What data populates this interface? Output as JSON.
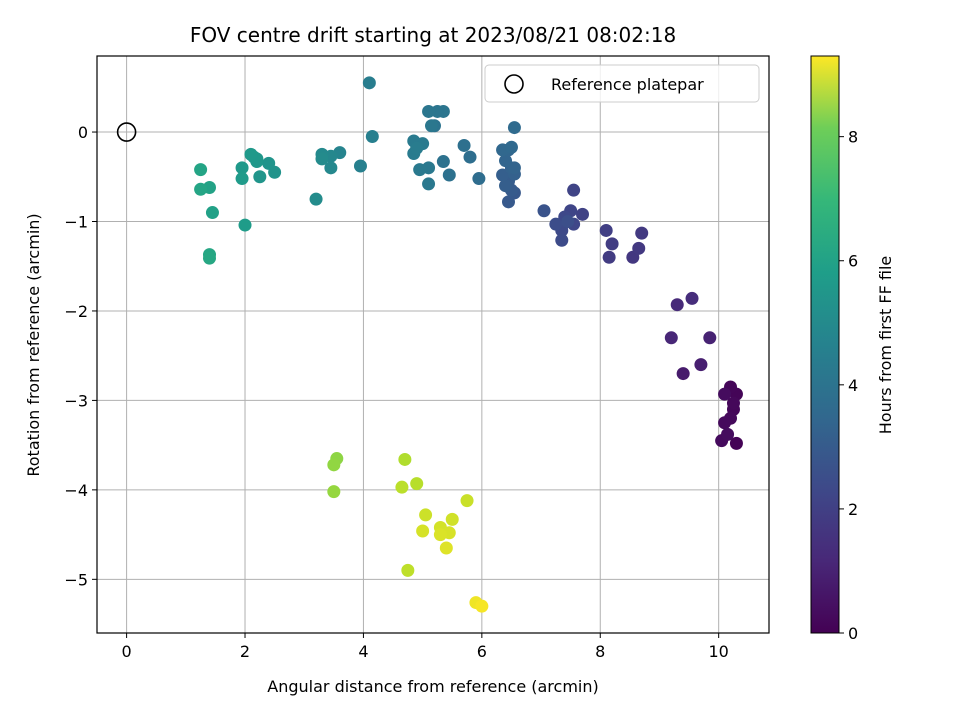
{
  "chart_data": {
    "type": "scatter",
    "title": "FOV centre drift starting at 2023/08/21 08:02:18",
    "xlabel": "Angular distance from reference (arcmin)",
    "ylabel": "Rotation from reference (arcmin)",
    "xlim": [
      -0.5,
      10.85
    ],
    "ylim": [
      -5.6,
      0.85
    ],
    "xticks": [
      0,
      2,
      4,
      6,
      8,
      10
    ],
    "yticks": [
      0,
      -1,
      -2,
      -3,
      -4,
      -5
    ],
    "grid": true,
    "legend": {
      "placement": "upper right",
      "entries": [
        "Reference platepar"
      ]
    },
    "reference_point": {
      "x": 0,
      "y": 0,
      "label": "Reference platepar"
    },
    "colorbar": {
      "label": "Hours from first FF file",
      "range": [
        0,
        9.3
      ],
      "ticks": [
        0,
        2,
        4,
        6,
        8
      ],
      "colormap": "viridis"
    },
    "points": [
      {
        "x": 10.3,
        "y": -3.48,
        "h": 0.05
      },
      {
        "x": 10.3,
        "y": -2.93,
        "h": 0.1
      },
      {
        "x": 10.2,
        "y": -2.85,
        "h": 0.12
      },
      {
        "x": 10.25,
        "y": -3.1,
        "h": 0.15
      },
      {
        "x": 10.25,
        "y": -3.03,
        "h": 0.18
      },
      {
        "x": 10.2,
        "y": -3.2,
        "h": 0.2
      },
      {
        "x": 10.1,
        "y": -3.25,
        "h": 0.22
      },
      {
        "x": 10.05,
        "y": -3.45,
        "h": 0.25
      },
      {
        "x": 10.15,
        "y": -3.38,
        "h": 0.28
      },
      {
        "x": 10.1,
        "y": -2.93,
        "h": 0.3
      },
      {
        "x": 9.4,
        "y": -2.7,
        "h": 0.7
      },
      {
        "x": 9.7,
        "y": -2.6,
        "h": 0.8
      },
      {
        "x": 9.85,
        "y": -2.3,
        "h": 0.9
      },
      {
        "x": 9.2,
        "y": -2.3,
        "h": 1.0
      },
      {
        "x": 9.3,
        "y": -1.93,
        "h": 1.1
      },
      {
        "x": 9.55,
        "y": -1.86,
        "h": 1.2
      },
      {
        "x": 8.55,
        "y": -1.4,
        "h": 1.5
      },
      {
        "x": 8.65,
        "y": -1.3,
        "h": 1.55
      },
      {
        "x": 8.7,
        "y": -1.13,
        "h": 1.6
      },
      {
        "x": 8.15,
        "y": -1.4,
        "h": 1.65
      },
      {
        "x": 8.2,
        "y": -1.25,
        "h": 1.7
      },
      {
        "x": 8.1,
        "y": -1.1,
        "h": 1.75
      },
      {
        "x": 7.7,
        "y": -0.92,
        "h": 1.85
      },
      {
        "x": 7.55,
        "y": -0.65,
        "h": 1.9
      },
      {
        "x": 7.5,
        "y": -0.88,
        "h": 1.95
      },
      {
        "x": 7.55,
        "y": -1.03,
        "h": 2.0
      },
      {
        "x": 7.4,
        "y": -0.95,
        "h": 2.05
      },
      {
        "x": 7.35,
        "y": -1.1,
        "h": 2.1
      },
      {
        "x": 7.35,
        "y": -1.21,
        "h": 2.15
      },
      {
        "x": 7.25,
        "y": -1.03,
        "h": 2.2
      },
      {
        "x": 7.45,
        "y": -1.0,
        "h": 2.25
      },
      {
        "x": 7.05,
        "y": -0.88,
        "h": 2.4
      },
      {
        "x": 6.55,
        "y": -0.68,
        "h": 2.55
      },
      {
        "x": 6.45,
        "y": -0.78,
        "h": 2.6
      },
      {
        "x": 6.5,
        "y": -0.65,
        "h": 2.65
      },
      {
        "x": 6.45,
        "y": -0.55,
        "h": 2.7
      },
      {
        "x": 6.4,
        "y": -0.6,
        "h": 2.75
      },
      {
        "x": 6.35,
        "y": -0.48,
        "h": 2.8
      },
      {
        "x": 6.55,
        "y": -0.47,
        "h": 2.85
      },
      {
        "x": 6.5,
        "y": -0.4,
        "h": 2.9
      },
      {
        "x": 6.55,
        "y": -0.4,
        "h": 2.95
      },
      {
        "x": 6.4,
        "y": -0.32,
        "h": 3.0
      },
      {
        "x": 6.45,
        "y": -0.2,
        "h": 3.05
      },
      {
        "x": 6.35,
        "y": -0.2,
        "h": 3.1
      },
      {
        "x": 6.5,
        "y": -0.17,
        "h": 3.15
      },
      {
        "x": 6.55,
        "y": 0.05,
        "h": 3.2
      },
      {
        "x": 5.95,
        "y": -0.52,
        "h": 3.3
      },
      {
        "x": 5.8,
        "y": -0.28,
        "h": 3.35
      },
      {
        "x": 5.7,
        "y": -0.15,
        "h": 3.4
      },
      {
        "x": 5.45,
        "y": -0.48,
        "h": 3.45
      },
      {
        "x": 5.35,
        "y": -0.33,
        "h": 3.5
      },
      {
        "x": 5.2,
        "y": 0.07,
        "h": 3.55
      },
      {
        "x": 5.35,
        "y": 0.23,
        "h": 3.6
      },
      {
        "x": 5.25,
        "y": 0.23,
        "h": 3.62
      },
      {
        "x": 5.1,
        "y": 0.23,
        "h": 3.65
      },
      {
        "x": 5.15,
        "y": 0.07,
        "h": 3.7
      },
      {
        "x": 5.1,
        "y": -0.4,
        "h": 3.72
      },
      {
        "x": 5.1,
        "y": -0.58,
        "h": 3.75
      },
      {
        "x": 4.95,
        "y": -0.42,
        "h": 3.78
      },
      {
        "x": 5.0,
        "y": -0.13,
        "h": 3.8
      },
      {
        "x": 4.85,
        "y": -0.1,
        "h": 3.82
      },
      {
        "x": 4.85,
        "y": -0.24,
        "h": 3.85
      },
      {
        "x": 4.9,
        "y": -0.18,
        "h": 3.88
      },
      {
        "x": 4.1,
        "y": 0.55,
        "h": 3.95
      },
      {
        "x": 4.15,
        "y": -0.05,
        "h": 4.0
      },
      {
        "x": 3.95,
        "y": -0.38,
        "h": 4.05
      },
      {
        "x": 3.6,
        "y": -0.23,
        "h": 4.2
      },
      {
        "x": 3.45,
        "y": -0.27,
        "h": 4.3
      },
      {
        "x": 3.45,
        "y": -0.4,
        "h": 4.35
      },
      {
        "x": 3.3,
        "y": -0.25,
        "h": 4.4
      },
      {
        "x": 3.3,
        "y": -0.3,
        "h": 4.45
      },
      {
        "x": 3.2,
        "y": -0.75,
        "h": 4.5
      },
      {
        "x": 2.5,
        "y": -0.45,
        "h": 4.75
      },
      {
        "x": 2.4,
        "y": -0.35,
        "h": 4.8
      },
      {
        "x": 2.25,
        "y": -0.5,
        "h": 4.85
      },
      {
        "x": 2.2,
        "y": -0.3,
        "h": 4.9
      },
      {
        "x": 2.2,
        "y": -0.33,
        "h": 4.92
      },
      {
        "x": 2.15,
        "y": -0.28,
        "h": 4.95
      },
      {
        "x": 2.1,
        "y": -0.25,
        "h": 4.98
      },
      {
        "x": 1.95,
        "y": -0.4,
        "h": 5.0
      },
      {
        "x": 1.95,
        "y": -0.52,
        "h": 5.05
      },
      {
        "x": 2.0,
        "y": -1.04,
        "h": 5.1
      },
      {
        "x": 1.45,
        "y": -0.9,
        "h": 5.3
      },
      {
        "x": 1.4,
        "y": -0.62,
        "h": 5.35
      },
      {
        "x": 1.25,
        "y": -0.42,
        "h": 5.4
      },
      {
        "x": 1.25,
        "y": -0.64,
        "h": 5.45
      },
      {
        "x": 1.4,
        "y": -1.37,
        "h": 5.5
      },
      {
        "x": 1.4,
        "y": -1.41,
        "h": 5.55
      },
      {
        "x": 3.55,
        "y": -3.65,
        "h": 7.7
      },
      {
        "x": 3.5,
        "y": -3.72,
        "h": 7.75
      },
      {
        "x": 3.5,
        "y": -4.02,
        "h": 7.8
      },
      {
        "x": 4.7,
        "y": -3.66,
        "h": 8.2
      },
      {
        "x": 4.9,
        "y": -3.93,
        "h": 8.3
      },
      {
        "x": 4.65,
        "y": -3.97,
        "h": 8.35
      },
      {
        "x": 5.75,
        "y": -4.12,
        "h": 8.55
      },
      {
        "x": 5.05,
        "y": -4.28,
        "h": 8.6
      },
      {
        "x": 5.5,
        "y": -4.33,
        "h": 8.65
      },
      {
        "x": 5.3,
        "y": -4.42,
        "h": 8.7
      },
      {
        "x": 5.0,
        "y": -4.46,
        "h": 8.72
      },
      {
        "x": 5.45,
        "y": -4.48,
        "h": 8.75
      },
      {
        "x": 5.3,
        "y": -4.5,
        "h": 8.8
      },
      {
        "x": 5.4,
        "y": -4.65,
        "h": 8.85
      },
      {
        "x": 4.75,
        "y": -4.9,
        "h": 8.4
      },
      {
        "x": 5.9,
        "y": -5.26,
        "h": 9.1
      },
      {
        "x": 6.0,
        "y": -5.3,
        "h": 9.2
      }
    ]
  }
}
